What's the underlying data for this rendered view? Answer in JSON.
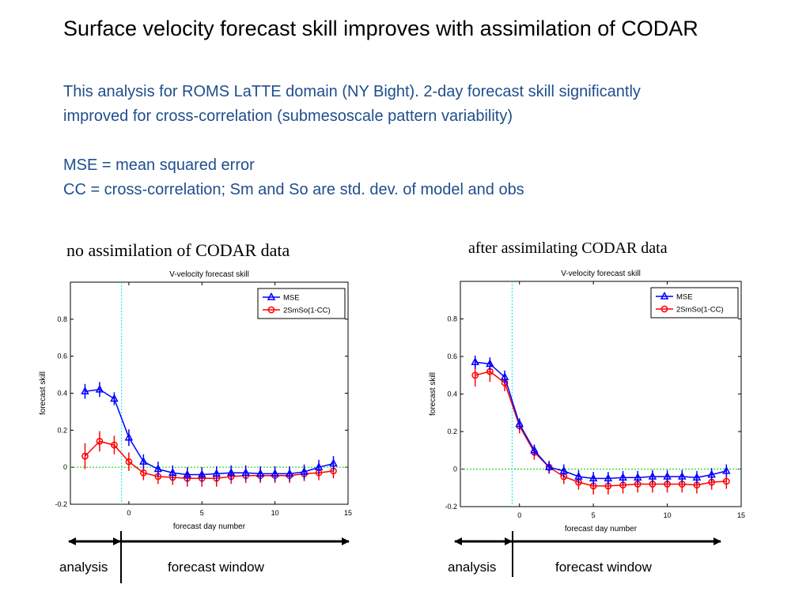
{
  "slide": {
    "title": "Surface velocity forecast skill improves with assimilation of CODAR",
    "lines": [
      "This analysis for ROMS LaTTE domain (NY Bight). 2-day forecast skill significantly",
      "improved for cross-correlation (submesoscale pattern variability)",
      "",
      "MSE = mean squared error",
      "CC = cross-correlation; Sm and So are std. dev. of model and obs"
    ]
  },
  "captions": {
    "left": "no assimilation of CODAR data",
    "right": "after assimilating CODAR data"
  },
  "spans": {
    "left": {
      "analysis": "analysis",
      "forecast": "forecast window"
    },
    "right": {
      "analysis": "analysis",
      "forecast": "forecast window"
    }
  },
  "colors": {
    "mse": "#0000ff",
    "cc": "#ff0000",
    "zero_line": "#00cc00",
    "analysis_line": "#00e5ee"
  },
  "chart_data": [
    {
      "type": "line",
      "title": "V-velocity forecast skill",
      "xlabel": "forecast day number",
      "ylabel": "forecast skill",
      "xlim": [
        -4,
        15
      ],
      "ylim": [
        -0.2,
        1.0
      ],
      "xticks": [
        0,
        5,
        10,
        15
      ],
      "yticks": [
        -0.2,
        0,
        0.2,
        0.4,
        0.6,
        0.8
      ],
      "zero_line": 0,
      "analysis_time": -0.5,
      "legend_position": "top-right",
      "x": [
        -3,
        -2,
        -1,
        0,
        1,
        2,
        3,
        4,
        5,
        6,
        7,
        8,
        9,
        10,
        11,
        12,
        13,
        14
      ],
      "series": [
        {
          "name": "MSE",
          "marker": "triangle",
          "values": [
            0.41,
            0.42,
            0.37,
            0.16,
            0.03,
            -0.01,
            -0.03,
            -0.04,
            -0.04,
            -0.035,
            -0.03,
            -0.03,
            -0.035,
            -0.035,
            -0.035,
            -0.025,
            0.0,
            0.02
          ],
          "err": [
            0.04,
            0.04,
            0.035,
            0.045,
            0.04,
            0.04,
            0.04,
            0.04,
            0.04,
            0.04,
            0.04,
            0.04,
            0.04,
            0.04,
            0.04,
            0.04,
            0.04,
            0.04
          ]
        },
        {
          "name": "2SmSo(1-CC)",
          "marker": "circle",
          "values": [
            0.06,
            0.14,
            0.12,
            0.03,
            -0.03,
            -0.05,
            -0.055,
            -0.06,
            -0.06,
            -0.06,
            -0.05,
            -0.045,
            -0.045,
            -0.045,
            -0.045,
            -0.035,
            -0.03,
            -0.02
          ],
          "err": [
            0.07,
            0.055,
            0.05,
            0.05,
            0.04,
            0.04,
            0.04,
            0.045,
            0.045,
            0.045,
            0.04,
            0.04,
            0.04,
            0.04,
            0.04,
            0.04,
            0.04,
            0.04
          ]
        }
      ]
    },
    {
      "type": "line",
      "title": "V-velocity forecast skill",
      "xlabel": "forecast day number",
      "ylabel": "forecast skill",
      "xlim": [
        -4,
        15
      ],
      "ylim": [
        -0.2,
        1.0
      ],
      "xticks": [
        0,
        5,
        10,
        15
      ],
      "yticks": [
        -0.2,
        0,
        0.2,
        0.4,
        0.6,
        0.8
      ],
      "zero_line": 0,
      "analysis_time": -0.5,
      "legend_position": "top-right",
      "x": [
        -3,
        -2,
        -1,
        0,
        1,
        2,
        3,
        4,
        5,
        6,
        7,
        8,
        9,
        10,
        11,
        12,
        13,
        14
      ],
      "series": [
        {
          "name": "MSE",
          "marker": "triangle",
          "values": [
            0.57,
            0.56,
            0.49,
            0.24,
            0.1,
            0.01,
            -0.01,
            -0.04,
            -0.05,
            -0.05,
            -0.045,
            -0.045,
            -0.04,
            -0.04,
            -0.04,
            -0.045,
            -0.03,
            -0.01
          ],
          "err": [
            0.035,
            0.035,
            0.035,
            0.03,
            0.03,
            0.03,
            0.035,
            0.035,
            0.035,
            0.035,
            0.035,
            0.035,
            0.035,
            0.035,
            0.035,
            0.035,
            0.035,
            0.035
          ]
        },
        {
          "name": "2SmSo(1-CC)",
          "marker": "circle",
          "values": [
            0.5,
            0.52,
            0.46,
            0.23,
            0.09,
            0.01,
            -0.04,
            -0.07,
            -0.09,
            -0.09,
            -0.085,
            -0.08,
            -0.08,
            -0.08,
            -0.08,
            -0.085,
            -0.07,
            -0.065
          ],
          "err": [
            0.06,
            0.055,
            0.045,
            0.04,
            0.04,
            0.035,
            0.04,
            0.04,
            0.045,
            0.045,
            0.045,
            0.045,
            0.045,
            0.045,
            0.045,
            0.045,
            0.04,
            0.04
          ]
        }
      ]
    }
  ]
}
